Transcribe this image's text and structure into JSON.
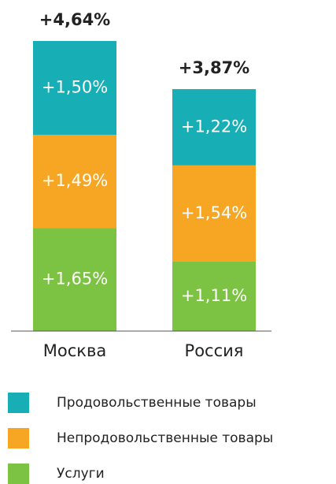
{
  "chart_data": {
    "type": "stacked_bar",
    "categories": [
      "Москва",
      "Россия"
    ],
    "series": [
      {
        "name": "Продовольственные товары",
        "color": "#17aeb5",
        "values": [
          1.5,
          1.22
        ],
        "value_labels": [
          "+1,50%",
          "+1,22%"
        ]
      },
      {
        "name": "Непродовольственные товары",
        "color": "#f6a623",
        "values": [
          1.49,
          1.54
        ],
        "value_labels": [
          "+1,49%",
          "+1,54%"
        ]
      },
      {
        "name": "Услуги",
        "color": "#7cc243",
        "values": [
          1.65,
          1.11
        ],
        "value_labels": [
          "+1,65%",
          "+1,11%"
        ]
      }
    ],
    "totals": [
      4.64,
      3.87
    ],
    "total_labels": [
      "+4,64%",
      "+3,87%"
    ]
  }
}
